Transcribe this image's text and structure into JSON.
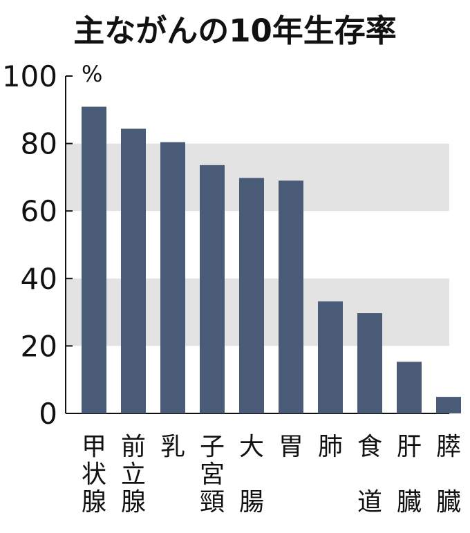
{
  "chart_data": {
    "type": "bar",
    "title": "主ながんの10年生存率",
    "ylabel": "",
    "unit": "%",
    "ylim": [
      0,
      100
    ],
    "yticks": [
      0,
      20,
      40,
      60,
      80,
      100
    ],
    "ytick_labels": [
      "0",
      "20",
      "40",
      "60",
      "80",
      "100"
    ],
    "grid": false,
    "shaded_bands": [
      [
        20,
        40
      ],
      [
        60,
        80
      ]
    ],
    "categories": [
      "甲状腺",
      "前立腺",
      "乳",
      "子宮頸",
      "大腸",
      "胃",
      "肺",
      "食道",
      "肝臓",
      "膵臓"
    ],
    "values": [
      90.9,
      84.4,
      80.4,
      73.6,
      69.8,
      69.0,
      33.2,
      29.7,
      15.3,
      4.9
    ],
    "colors": {
      "bar": "#4a5b78",
      "band": "#e3e3e3",
      "frame": "#111111"
    }
  }
}
